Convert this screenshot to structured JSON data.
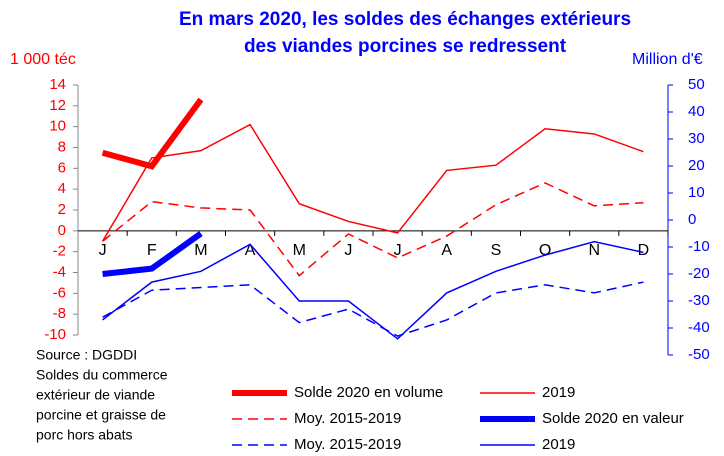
{
  "chart_data": {
    "type": "line",
    "title": [
      "En mars 2020, les soldes des échanges extérieurs",
      "des viandes porcines se redressent"
    ],
    "y_label": "1 000 téc",
    "y2_label": "Million d'€",
    "categories": [
      "J",
      "F",
      "M",
      "A",
      "M",
      "J",
      "J",
      "A",
      "S",
      "O",
      "N",
      "D"
    ],
    "ylim": [
      -10,
      14
    ],
    "yticks": [
      -10,
      -8,
      -6,
      -4,
      -2,
      0,
      2,
      4,
      6,
      8,
      10,
      12,
      14
    ],
    "y2lim": [
      -50,
      50
    ],
    "y2ticks": [
      -50,
      -40,
      -30,
      -20,
      -10,
      0,
      10,
      20,
      30,
      40,
      50
    ],
    "series": [
      {
        "name": "Solde 2020 en volume",
        "color": "#ff0000",
        "bold": true,
        "dashed": false,
        "values": [
          7.5,
          6.2,
          12.6,
          null,
          null,
          null,
          null,
          null,
          null,
          null,
          null,
          null
        ]
      },
      {
        "name": "2019",
        "color": "#ff0000",
        "bold": false,
        "dashed": false,
        "values": [
          -1,
          7.0,
          7.7,
          10.2,
          2.6,
          0.9,
          -0.2,
          5.8,
          6.3,
          9.8,
          9.3,
          7.6
        ]
      },
      {
        "name": "Moy. 2015-2019",
        "color": "#ff0000",
        "bold": false,
        "dashed": true,
        "values": [
          -1.0,
          2.8,
          2.2,
          2.0,
          -4.3,
          -0.3,
          -2.6,
          -0.5,
          2.5,
          4.6,
          2.4,
          2.7
        ]
      },
      {
        "name": "Solde 2020 en valeur",
        "color": "#0000ff",
        "bold": true,
        "dashed": false,
        "axis": "y2",
        "values": [
          -20,
          -18,
          -5,
          null,
          null,
          null,
          null,
          null,
          null,
          null,
          null,
          null
        ]
      },
      {
        "name": "Moy. 2015-2019",
        "color": "#0000ff",
        "bold": false,
        "dashed": true,
        "axis": "y2",
        "values": [
          -36,
          -26,
          -25,
          -24,
          -38,
          -33,
          -43,
          -37,
          -27,
          -24,
          -27,
          -23
        ]
      },
      {
        "name": "2019",
        "color": "#0000ff",
        "bold": false,
        "dashed": false,
        "axis": "y2",
        "values": [
          -37,
          -23,
          -19,
          -9,
          -30,
          -30,
          -44,
          -27,
          -19,
          -13,
          -8,
          -12
        ]
      }
    ],
    "note": [
      "Source : DGDDI",
      "Soldes du commerce",
      "extérieur de viande",
      "porcine et graisse de",
      "porc hors abats"
    ]
  }
}
